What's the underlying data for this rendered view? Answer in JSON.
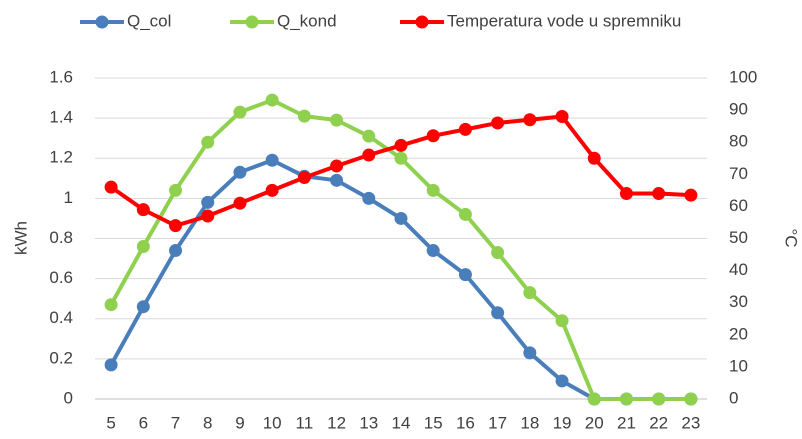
{
  "chart_data": {
    "type": "line",
    "categories": [
      "5",
      "6",
      "7",
      "8",
      "9",
      "10",
      "11",
      "12",
      "13",
      "14",
      "15",
      "16",
      "17",
      "18",
      "19",
      "20",
      "21",
      "22",
      "23"
    ],
    "series": [
      {
        "name": "Q_col",
        "color": "#4a7ebb",
        "values": [
          0.17,
          0.46,
          0.74,
          0.98,
          1.13,
          1.19,
          1.11,
          1.09,
          1.0,
          0.9,
          0.74,
          0.62,
          0.43,
          0.23,
          0.09,
          0,
          0,
          0,
          0
        ]
      },
      {
        "name": "Q_kond",
        "color": "#8fd14f",
        "values": [
          0.47,
          0.76,
          1.04,
          1.28,
          1.43,
          1.49,
          1.41,
          1.39,
          1.31,
          1.2,
          1.04,
          0.92,
          0.73,
          0.53,
          0.39,
          0,
          0,
          0,
          0
        ]
      },
      {
        "name": "Temperatura vode u spremniku",
        "color": "#ff0000",
        "axis": "y2",
        "values": [
          66,
          59,
          54,
          57,
          61,
          65,
          69,
          72.6,
          76,
          79,
          82,
          84,
          86,
          87,
          88,
          75,
          64,
          64,
          63.5
        ]
      }
    ],
    "ylabel": "kWh",
    "y2label": "°C",
    "ylim": [
      0,
      1.6
    ],
    "yticks": [
      0,
      0.2,
      0.4,
      0.6,
      0.8,
      1,
      1.2,
      1.4,
      1.6
    ],
    "y2lim": [
      0,
      100
    ],
    "y2ticks": [
      0,
      10,
      20,
      30,
      40,
      50,
      60,
      70,
      80,
      90,
      100
    ],
    "grid": true,
    "legend": "top"
  }
}
